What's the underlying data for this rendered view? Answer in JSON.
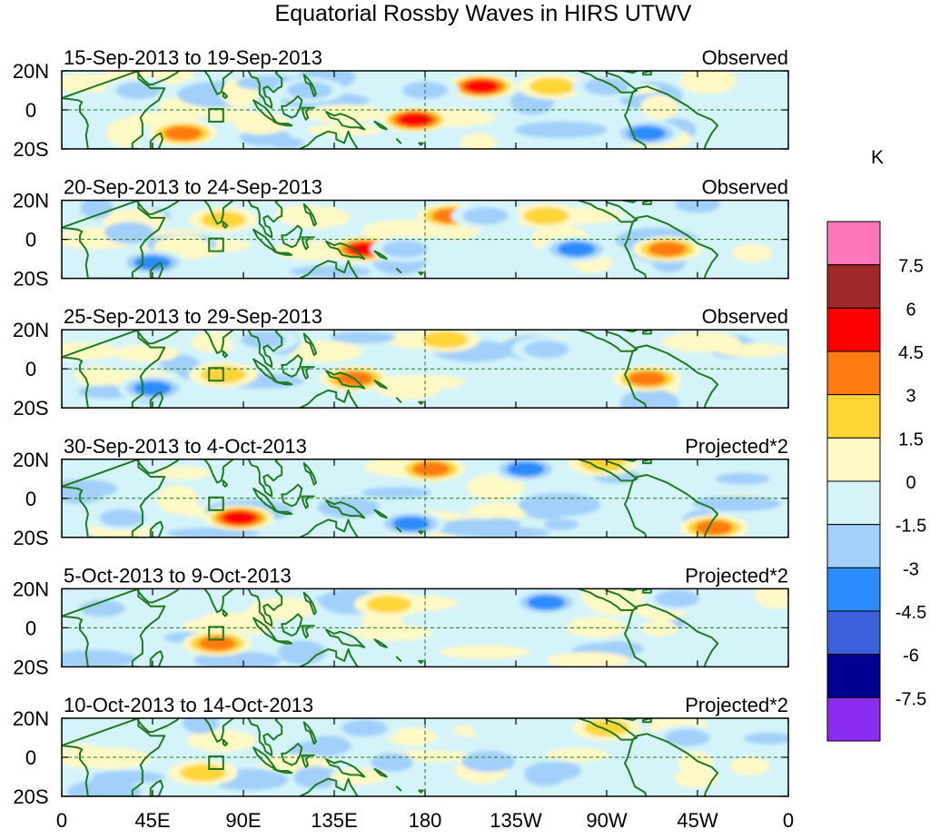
{
  "title": "Equatorial Rossby Waves in HIRS UTWV",
  "unit": "K",
  "lat_labels": [
    "20N",
    "0",
    "20S"
  ],
  "lon_labels": [
    "0",
    "45E",
    "90E",
    "135E",
    "180",
    "135W",
    "90W",
    "45W",
    "0"
  ],
  "panels": [
    {
      "date_range": "15-Sep-2013 to 19-Sep-2013",
      "status": "Observed"
    },
    {
      "date_range": "20-Sep-2013 to 24-Sep-2013",
      "status": "Observed"
    },
    {
      "date_range": "25-Sep-2013 to 29-Sep-2013",
      "status": "Observed"
    },
    {
      "date_range": "30-Sep-2013 to 4-Oct-2013",
      "status": "Projected*2"
    },
    {
      "date_range": "5-Oct-2013 to 9-Oct-2013",
      "status": "Projected*2"
    },
    {
      "date_range": "10-Oct-2013 to 14-Oct-2013",
      "status": "Projected*2"
    }
  ],
  "colorbar": {
    "colors": [
      "#ff77bb",
      "#a02828",
      "#ff0000",
      "#ff7a10",
      "#ffd535",
      "#fff9c6",
      "#d4f4fa",
      "#a2d0fa",
      "#2a8cff",
      "#3c60dc",
      "#000090",
      "#8c2cf0"
    ],
    "labels": [
      "7.5",
      "6",
      "4.5",
      "3",
      "1.5",
      "0",
      "-1.5",
      "-3",
      "-4.5",
      "-6",
      "-7.5"
    ]
  },
  "chart_data": {
    "type": "heatmap",
    "title": "Equatorial Rossby Waves in HIRS UTWV",
    "variable": "upper-tropospheric water vapor anomaly",
    "unit": "K",
    "lon_range": [
      0,
      360
    ],
    "lat_range": [
      -20,
      20
    ],
    "levels": [
      -7.5,
      -6,
      -4.5,
      -3,
      -1.5,
      0,
      1.5,
      3,
      4.5,
      6,
      7.5
    ],
    "panels": [
      {
        "period": "15-Sep-2013 to 19-Sep-2013",
        "kind": "Observed",
        "anomalies": [
          {
            "lon": 175,
            "lat": -5,
            "value": 5.5
          },
          {
            "lon": 208,
            "lat": 12,
            "value": 5
          },
          {
            "lon": 60,
            "lat": -12,
            "value": 3.5
          },
          {
            "lon": 243,
            "lat": 12,
            "value": 2
          },
          {
            "lon": 295,
            "lat": -15,
            "value": 1.5
          },
          {
            "lon": 38,
            "lat": 10,
            "value": -2.5
          },
          {
            "lon": 123,
            "lat": 10,
            "value": -3
          },
          {
            "lon": 180,
            "lat": 10,
            "value": -3
          },
          {
            "lon": 270,
            "lat": 12,
            "value": -3
          },
          {
            "lon": 290,
            "lat": -12,
            "value": -3.5
          }
        ]
      },
      {
        "period": "20-Sep-2013 to 24-Sep-2013",
        "kind": "Observed",
        "anomalies": [
          {
            "lon": 150,
            "lat": -5,
            "value": 5.5
          },
          {
            "lon": 193,
            "lat": 12,
            "value": 4
          },
          {
            "lon": 300,
            "lat": -5,
            "value": 4
          },
          {
            "lon": 240,
            "lat": 12,
            "value": 2
          },
          {
            "lon": 80,
            "lat": 10,
            "value": 2
          },
          {
            "lon": 45,
            "lat": -12,
            "value": -3.5
          },
          {
            "lon": 255,
            "lat": -5,
            "value": -3.5
          },
          {
            "lon": 170,
            "lat": -5,
            "value": -2.5
          },
          {
            "lon": 210,
            "lat": 12,
            "value": -2.5
          },
          {
            "lon": 315,
            "lat": 18,
            "value": -3
          }
        ]
      },
      {
        "period": "25-Sep-2013 to 29-Sep-2013",
        "kind": "Observed",
        "anomalies": [
          {
            "lon": 145,
            "lat": -5,
            "value": 3.5
          },
          {
            "lon": 290,
            "lat": -5,
            "value": 3.5
          },
          {
            "lon": 190,
            "lat": 15,
            "value": 2
          },
          {
            "lon": 80,
            "lat": -3,
            "value": 2
          },
          {
            "lon": 45,
            "lat": -10,
            "value": -3.5
          },
          {
            "lon": 100,
            "lat": 15,
            "value": -2
          },
          {
            "lon": 240,
            "lat": 10,
            "value": -2.5
          }
        ]
      },
      {
        "period": "30-Sep-2013 to 4-Oct-2013",
        "kind": "Projected*2",
        "anomalies": [
          {
            "lon": 88,
            "lat": -10,
            "value": 5
          },
          {
            "lon": 183,
            "lat": 15,
            "value": 4
          },
          {
            "lon": 323,
            "lat": -15,
            "value": 4
          },
          {
            "lon": 230,
            "lat": 15,
            "value": -4
          },
          {
            "lon": 173,
            "lat": -13,
            "value": -3.5
          },
          {
            "lon": 30,
            "lat": -10,
            "value": -3
          },
          {
            "lon": 268,
            "lat": 18,
            "value": 3
          }
        ]
      },
      {
        "period": "5-Oct-2013 to 9-Oct-2013",
        "kind": "Projected*2",
        "anomalies": [
          {
            "lon": 77,
            "lat": -8,
            "value": 4
          },
          {
            "lon": 240,
            "lat": 13,
            "value": -3.5
          },
          {
            "lon": 162,
            "lat": 12,
            "value": 2
          },
          {
            "lon": 305,
            "lat": 15,
            "value": -2
          },
          {
            "lon": 20,
            "lat": 10,
            "value": -2
          }
        ]
      },
      {
        "period": "10-Oct-2013 to 14-Oct-2013",
        "kind": "Projected*2",
        "anomalies": [
          {
            "lon": 70,
            "lat": -8,
            "value": 2
          },
          {
            "lon": 270,
            "lat": 15,
            "value": 2
          },
          {
            "lon": 150,
            "lat": 15,
            "value": -2
          },
          {
            "lon": 220,
            "lat": 15,
            "value": -1.5
          },
          {
            "lon": 310,
            "lat": 10,
            "value": -2
          }
        ]
      }
    ]
  }
}
